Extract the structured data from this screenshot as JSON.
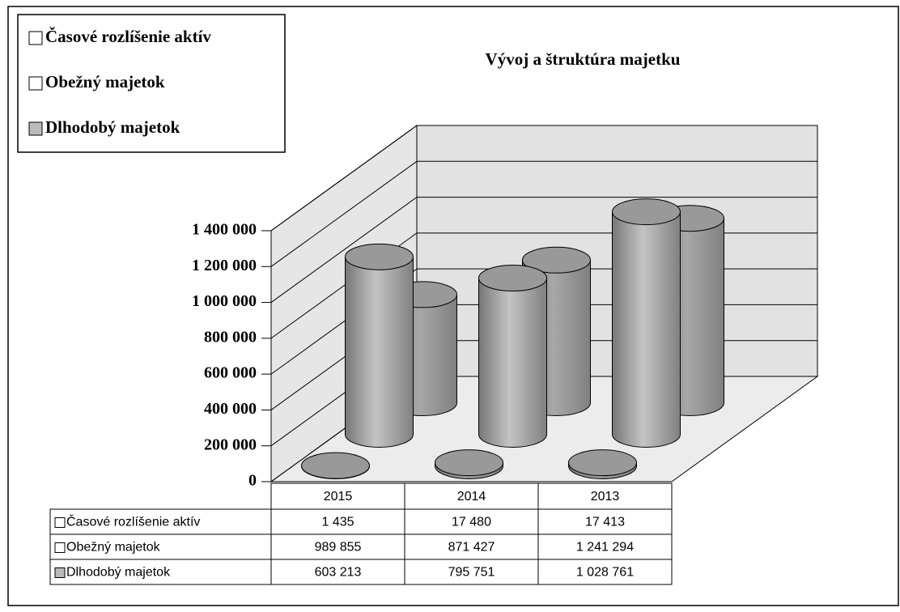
{
  "chart_data": {
    "type": "cylinder3d",
    "title": "Vývoj a štruktúra majetku",
    "categories": [
      "2015",
      "2014",
      "2013"
    ],
    "series": [
      {
        "name": "Časové rozlíšenie aktív",
        "color": "#9a9a9a",
        "values": [
          1435,
          17480,
          17413
        ],
        "value_labels": [
          "1 435",
          "17 480",
          "17 413"
        ]
      },
      {
        "name": "Obežný majetok",
        "color": "#c4c4c4",
        "values": [
          989855,
          871427,
          1241294
        ],
        "value_labels": [
          "989 855",
          "871 427",
          "1 241 294"
        ]
      },
      {
        "name": "Dlhodobý majetok",
        "color": "#a8a8a8",
        "values": [
          603213,
          795751,
          1028761
        ],
        "value_labels": [
          "603 213",
          "795 751",
          "1 028 761"
        ]
      }
    ],
    "ylim": [
      0,
      1400000
    ],
    "yticks": [
      0,
      {
        "value": 200000,
        "label": "200 000"
      },
      {
        "value": 400000,
        "label": "400 000"
      },
      {
        "value": 600000,
        "label": "600 000"
      },
      {
        "value": 800000,
        "label": "800 000"
      },
      {
        "value": 1000000,
        "label": "1 000 000"
      },
      {
        "value": 1200000,
        "label": "1 200 000"
      },
      {
        "value": 1400000,
        "label": "1 400 000"
      }
    ],
    "grid": true
  }
}
